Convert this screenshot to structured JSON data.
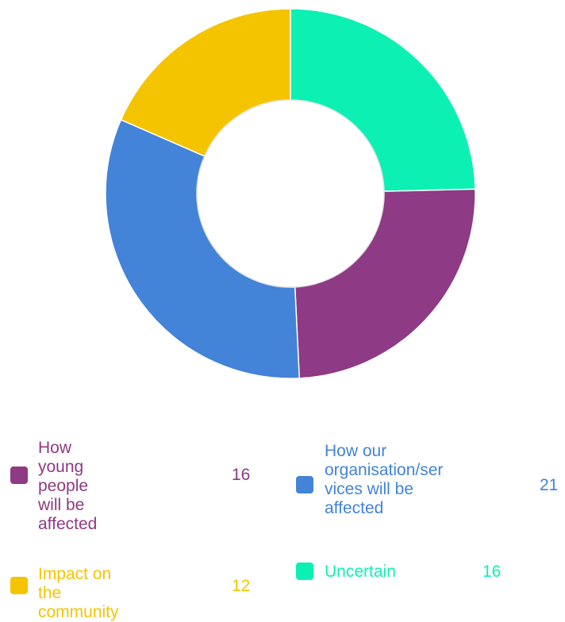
{
  "chart_data": {
    "type": "pie",
    "donut": true,
    "title": "",
    "categories": [
      "How young people will be affected",
      "How our organisation/services will be affected",
      "Impact on the community",
      "Uncertain"
    ],
    "values": [
      16,
      21,
      12,
      16
    ],
    "colors": [
      "#8e3a84",
      "#4383d8",
      "#f5c400",
      "#0cf0b4"
    ],
    "legend_position": "bottom"
  },
  "legend": [
    {
      "label": "How young\npeople will be\naffected",
      "value": "16",
      "color": "#8e3a84"
    },
    {
      "label": "How our\norganisation/ser\nvices will be\naffected",
      "value": "21",
      "color": "#4383d8"
    },
    {
      "label": "Impact on the\ncommunity",
      "value": "12",
      "color": "#f5c400"
    },
    {
      "label": "Uncertain",
      "value": "16",
      "color": "#0cf0b4"
    }
  ]
}
